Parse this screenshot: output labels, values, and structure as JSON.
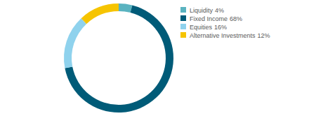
{
  "chart_data": {
    "type": "donut",
    "categories": [
      "Liquidity",
      "Fixed Income",
      "Equities",
      "Alternative Investments"
    ],
    "values": [
      4,
      68,
      16,
      12
    ],
    "value_labels": [
      "4%",
      "68%",
      "16%",
      "12%"
    ],
    "colors": [
      "#5ab3c0",
      "#005b78",
      "#8fd2ed",
      "#f6c400"
    ],
    "legend": "right"
  }
}
